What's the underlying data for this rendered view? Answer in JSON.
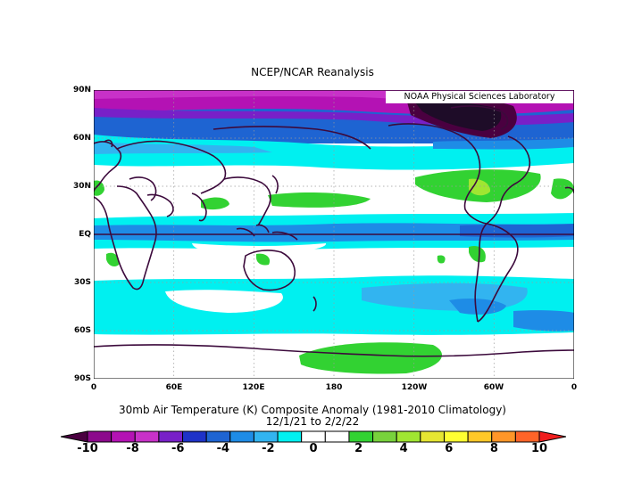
{
  "title": "NCEP/NCAR Reanalysis",
  "credit": "NOAA Physical Sciences Laboratory",
  "lat_labels": [
    "90N",
    "60N",
    "30N",
    "EQ",
    "30S",
    "60S",
    "90S"
  ],
  "lon_labels": [
    "0",
    "60E",
    "120E",
    "180",
    "120W",
    "60W",
    "0"
  ],
  "caption_line1": "30mb Air Temperature (K) Composite Anomaly (1981-2010 Climatology)",
  "caption_line2": "12/1/21  to 2/2/22",
  "colorbar": {
    "tick_labels": [
      "-10",
      "-8",
      "-6",
      "-4",
      "-2",
      "0",
      "2",
      "4",
      "6",
      "8",
      "10"
    ],
    "colors": [
      "#4a0040",
      "#8c0a8c",
      "#b412b4",
      "#c831c8",
      "#7820c8",
      "#1e32c8",
      "#1e64d2",
      "#1e8ce6",
      "#32b4f0",
      "#00f0f0",
      "#ffffff",
      "#ffffff",
      "#32d232",
      "#78d23c",
      "#a0e632",
      "#e6e632",
      "#ffff32",
      "#ffc828",
      "#ff9628",
      "#ff6428",
      "#f01e1e"
    ]
  },
  "map_colors": {
    "deep_purple": "#4a0040",
    "purple": "#b412b4",
    "magenta": "#c831c8",
    "violet": "#7820c8",
    "blue": "#1e64d2",
    "mid_blue": "#1e8ce6",
    "cyan": "#00f0f0",
    "light_cyan": "#32b4f0",
    "green": "#32d232",
    "light_green": "#a0e632",
    "coast": "#3c0a3c"
  }
}
